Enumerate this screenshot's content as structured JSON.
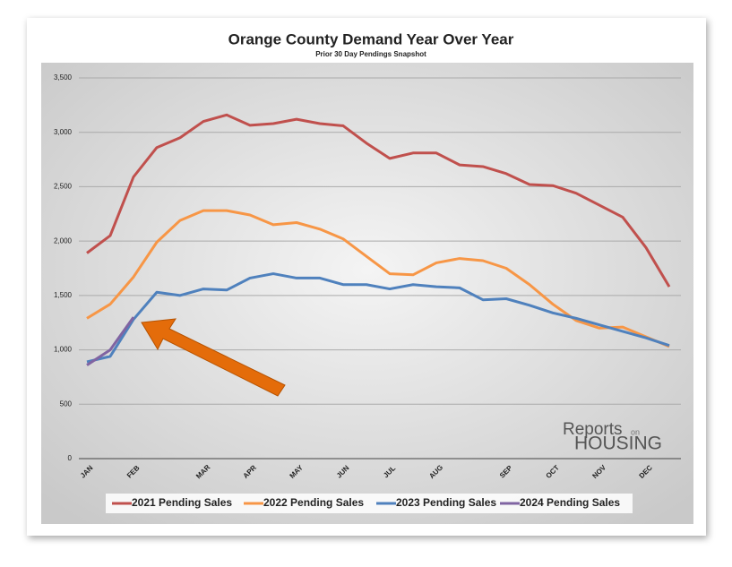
{
  "chart_data": {
    "type": "line",
    "title": "Orange County Demand Year Over Year",
    "subtitle": "Prior 30 Day Pendings Snapshot",
    "categories": [
      "JAN",
      null,
      "FEB",
      null,
      null,
      "MAR",
      null,
      "APR",
      null,
      "MAY",
      null,
      "JUN",
      null,
      "JUL",
      null,
      "AUG",
      null,
      null,
      "SEP",
      null,
      "OCT",
      null,
      "NOV",
      null,
      "DEC",
      null
    ],
    "series": [
      {
        "name": "2021 Pending Sales",
        "color": "#c0504d",
        "values": [
          1890,
          2050,
          2590,
          2860,
          2950,
          3100,
          3160,
          3065,
          3080,
          3120,
          3080,
          3060,
          2900,
          2760,
          2810,
          2810,
          2700,
          2685,
          2620,
          2520,
          2510,
          2440,
          2330,
          2220,
          1940,
          1580
        ]
      },
      {
        "name": "2022 Pending Sales",
        "color": "#f79646",
        "values": [
          1290,
          1420,
          1670,
          1990,
          2190,
          2280,
          2280,
          2240,
          2150,
          2170,
          2110,
          2020,
          1860,
          1700,
          1690,
          1800,
          1840,
          1820,
          1750,
          1600,
          1420,
          1270,
          1200,
          1210,
          1120,
          1030
        ]
      },
      {
        "name": "2023 Pending Sales",
        "color": "#4f81bd",
        "values": [
          890,
          940,
          1280,
          1530,
          1500,
          1560,
          1550,
          1660,
          1700,
          1660,
          1660,
          1600,
          1600,
          1560,
          1600,
          1580,
          1570,
          1460,
          1470,
          1410,
          1340,
          1290,
          1230,
          1170,
          1110,
          1040
        ]
      },
      {
        "name": "2024 Pending Sales",
        "color": "#8064a2",
        "values": [
          860,
          1000,
          1300,
          null,
          null,
          null,
          null,
          null,
          null,
          null,
          null,
          null,
          null,
          null,
          null,
          null,
          null,
          null,
          null,
          null,
          null,
          null,
          null,
          null,
          null,
          null
        ]
      }
    ],
    "ylim": [
      0,
      3500
    ],
    "yticks": [
      0,
      500,
      {
        "value": 1000,
        "label": "1,000"
      },
      {
        "value": 1500,
        "label": "1,500"
      },
      {
        "value": 2000,
        "label": "2,000"
      },
      {
        "value": 2500,
        "label": "2,500"
      },
      {
        "value": 3000,
        "label": "3,000"
      },
      {
        "value": 3500,
        "label": "3,500"
      }
    ],
    "grid": true,
    "legend": "bottom",
    "logo": {
      "brand": "Reports",
      "small": "on",
      "big": "HOUSING"
    }
  }
}
